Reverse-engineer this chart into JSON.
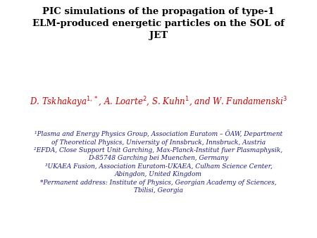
{
  "title_line1": "PIC simulations of the propagation of type-1",
  "title_line2": "ELM-produced energetic particles on the SOL of",
  "title_line3": "JET",
  "author_text": "D. Tskhakaya$^{1,*}$, A. Loarte$^{2}$, S. Kuhn$^{1}$, and W. Fundamenski$^{3}$",
  "aff_block": "¹Plasma and Energy Physics Group, Association Euratom – ÖAW, Department\nof Theoretical Physics, University of Innsbruck, Innsbruck, Austria\n²EFDA, Close Support Unit Garching, Max-Planck-Institut fuer Plasmaphysik,\nD-85748 Garching bei Muenchen, Germany\n³UKAEA Fusion, Association Euratom-UKAEA, Culham Science Center,\nAbingdon, United Kingdom\n*Permanent address: Institute of Physics, Georgian Academy of Sciences,\nTbilisi, Georgia",
  "background_color": "#ffffff",
  "title_color": "#000000",
  "author_color": "#cc0000",
  "affiliation_color": "#1a1a8c",
  "title_fontsize": 9.5,
  "author_fontsize": 8.5,
  "aff_fontsize": 6.5
}
